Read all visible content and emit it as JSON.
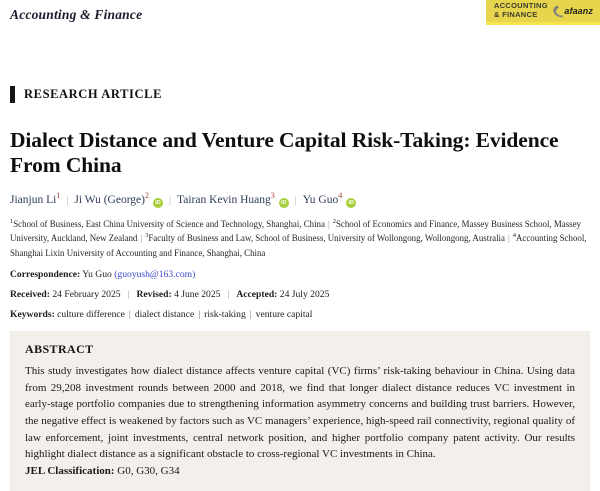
{
  "header": {
    "journal_name": "Accounting & Finance",
    "badge": {
      "line1": "ACCOUNTING",
      "line2": "& FINANCE",
      "logo_text": "afaanz"
    }
  },
  "article": {
    "type_label": "RESEARCH ARTICLE",
    "title": "Dialect Distance and Venture Capital Risk-Taking: Evidence From China",
    "authors": [
      {
        "name": "Jianjun Li",
        "sup": "1",
        "orcid": false
      },
      {
        "name": "Ji Wu (George)",
        "sup": "2",
        "orcid": true
      },
      {
        "name": "Tairan Kevin Huang",
        "sup": "3",
        "orcid": true
      },
      {
        "name": "Yu Guo",
        "sup": "4",
        "orcid": true
      }
    ],
    "affiliations": [
      {
        "sup": "1",
        "text": "School of Business, East China University of Science and Technology, Shanghai, China"
      },
      {
        "sup": "2",
        "text": "School of Economics and Finance, Massey Business School, Massey University, Auckland, New Zealand"
      },
      {
        "sup": "3",
        "text": "Faculty of Business and Law, School of Business, University of Wollongong, Wollongong, Australia"
      },
      {
        "sup": "4",
        "text": "Accounting School, Shanghai Lixin University of Accounting and Finance, Shanghai, China"
      }
    ],
    "correspondence": {
      "label": "Correspondence:",
      "name": "Yu Guo",
      "email": "guoyush@163.com"
    },
    "dates": [
      {
        "label": "Received:",
        "value": "24 February 2025"
      },
      {
        "label": "Revised:",
        "value": "4 June 2025"
      },
      {
        "label": "Accepted:",
        "value": "24 July 2025"
      }
    ],
    "keywords": {
      "label": "Keywords:",
      "items": [
        "culture difference",
        "dialect distance",
        "risk-taking",
        "venture capital"
      ]
    },
    "abstract": {
      "heading": "ABSTRACT",
      "text": "This study investigates how dialect distance affects venture capital (VC) firms’ risk-taking behaviour in China. Using data from 29,208 investment rounds between 2000 and 2018, we find that longer dialect distance reduces VC investment in early-stage portfolio companies due to strengthening information asymmetry concerns and building trust barriers. However, the negative effect is weakened by factors such as VC managers’ experience, high-speed rail connectivity, regional quality of law enforcement, joint investments, central network position, and higher portfolio company patent activity. Our results highlight dialect distance as a significant obstacle to cross-regional VC investments in China.",
      "jel_label": "JEL Classification:",
      "jel_value": "G0, G30, G34"
    }
  },
  "colors": {
    "badge_yellow": "#e7d64d",
    "orcid_green": "#a6ce39",
    "link_blue": "#3c49c6",
    "superscript_red": "#a13a3a",
    "abstract_background": "#f3efeb"
  }
}
